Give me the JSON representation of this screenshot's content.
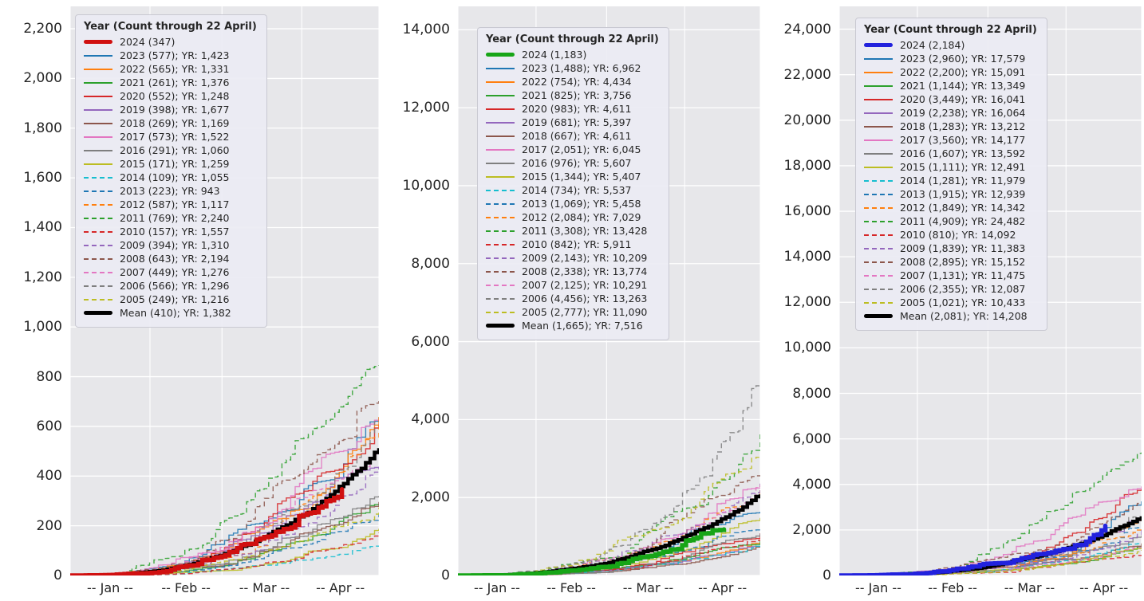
{
  "page": {
    "background": "#ffffff"
  },
  "chart_data": [
    {
      "type": "line",
      "legend_title": "Year (Count through 22 April)",
      "legend_position": "upper left",
      "grid": true,
      "x_tick_labels": [
        "-- Jan --",
        "-- Feb --",
        "-- Mar --",
        "-- Apr --"
      ],
      "x_range_days": 120,
      "ylim": [
        0,
        2290
      ],
      "y_tick_values": [
        0,
        200,
        400,
        600,
        800,
        1000,
        1200,
        1400,
        1600,
        1800,
        2000,
        2200
      ],
      "y_tick_labels": [
        "0",
        "200",
        "400",
        "600",
        "800",
        "1,000",
        "1,200",
        "1,400",
        "1,600",
        "1,800",
        "2,000",
        "2,200"
      ],
      "series": [
        {
          "label": "2024 (347)",
          "year": "2024",
          "count": 347,
          "yr_total": null,
          "color": "#d01010",
          "dash": false,
          "emphasis": true
        },
        {
          "label": "2023 (577); YR: 1,423",
          "year": "2023",
          "count": 577,
          "yr_total": 1423,
          "color": "#1f77b4",
          "dash": false,
          "emphasis": false
        },
        {
          "label": "2022 (565); YR: 1,331",
          "year": "2022",
          "count": 565,
          "yr_total": 1331,
          "color": "#ff7f0e",
          "dash": false,
          "emphasis": false
        },
        {
          "label": "2021 (261); YR: 1,376",
          "year": "2021",
          "count": 261,
          "yr_total": 1376,
          "color": "#2ca02c",
          "dash": false,
          "emphasis": false
        },
        {
          "label": "2020 (552); YR: 1,248",
          "year": "2020",
          "count": 552,
          "yr_total": 1248,
          "color": "#d62728",
          "dash": false,
          "emphasis": false
        },
        {
          "label": "2019 (398); YR: 1,677",
          "year": "2019",
          "count": 398,
          "yr_total": 1677,
          "color": "#9467bd",
          "dash": false,
          "emphasis": false
        },
        {
          "label": "2018 (269); YR: 1,169",
          "year": "2018",
          "count": 269,
          "yr_total": 1169,
          "color": "#8c564b",
          "dash": false,
          "emphasis": false
        },
        {
          "label": "2017 (573); YR: 1,522",
          "year": "2017",
          "count": 573,
          "yr_total": 1522,
          "color": "#e377c2",
          "dash": false,
          "emphasis": false
        },
        {
          "label": "2016 (291); YR: 1,060",
          "year": "2016",
          "count": 291,
          "yr_total": 1060,
          "color": "#7f7f7f",
          "dash": false,
          "emphasis": false
        },
        {
          "label": "2015 (171); YR: 1,259",
          "year": "2015",
          "count": 171,
          "yr_total": 1259,
          "color": "#bcbd22",
          "dash": false,
          "emphasis": false
        },
        {
          "label": "2014 (109); YR: 1,055",
          "year": "2014",
          "count": 109,
          "yr_total": 1055,
          "color": "#17becf",
          "dash": true,
          "emphasis": false
        },
        {
          "label": "2013 (223); YR: 943",
          "year": "2013",
          "count": 223,
          "yr_total": 943,
          "color": "#1f77b4",
          "dash": true,
          "emphasis": false
        },
        {
          "label": "2012 (587); YR: 1,117",
          "year": "2012",
          "count": 587,
          "yr_total": 1117,
          "color": "#ff7f0e",
          "dash": true,
          "emphasis": false
        },
        {
          "label": "2011 (769); YR: 2,240",
          "year": "2011",
          "count": 769,
          "yr_total": 2240,
          "color": "#2ca02c",
          "dash": true,
          "emphasis": false
        },
        {
          "label": "2010 (157); YR: 1,557",
          "year": "2010",
          "count": 157,
          "yr_total": 1557,
          "color": "#d62728",
          "dash": true,
          "emphasis": false
        },
        {
          "label": "2009 (394); YR: 1,310",
          "year": "2009",
          "count": 394,
          "yr_total": 1310,
          "color": "#9467bd",
          "dash": true,
          "emphasis": false
        },
        {
          "label": "2008 (643); YR: 2,194",
          "year": "2008",
          "count": 643,
          "yr_total": 2194,
          "color": "#8c564b",
          "dash": true,
          "emphasis": false
        },
        {
          "label": "2007 (449); YR: 1,276",
          "year": "2007",
          "count": 449,
          "yr_total": 1276,
          "color": "#e377c2",
          "dash": true,
          "emphasis": false
        },
        {
          "label": "2006 (566); YR: 1,296",
          "year": "2006",
          "count": 566,
          "yr_total": 1296,
          "color": "#7f7f7f",
          "dash": true,
          "emphasis": false
        },
        {
          "label": "2005 (249); YR: 1,216",
          "year": "2005",
          "count": 249,
          "yr_total": 1216,
          "color": "#bcbd22",
          "dash": true,
          "emphasis": false
        },
        {
          "label": "Mean (410); YR: 1,382",
          "year": "Mean",
          "count": 410,
          "yr_total": 1382,
          "color": "#000000",
          "dash": false,
          "emphasis": true
        }
      ]
    },
    {
      "type": "line",
      "legend_title": "Year (Count through 22 April)",
      "legend_position": "upper left",
      "grid": true,
      "x_tick_labels": [
        "-- Jan --",
        "-- Feb --",
        "-- Mar --",
        "-- Apr --"
      ],
      "x_range_days": 120,
      "ylim": [
        0,
        14600
      ],
      "y_tick_values": [
        0,
        2000,
        4000,
        6000,
        8000,
        10000,
        12000,
        14000
      ],
      "y_tick_labels": [
        "0",
        "2,000",
        "4,000",
        "6,000",
        "8,000",
        "10,000",
        "12,000",
        "14,000"
      ],
      "series": [
        {
          "label": "2024 (1,183)",
          "year": "2024",
          "count": 1183,
          "yr_total": null,
          "color": "#17a517",
          "dash": false,
          "emphasis": true
        },
        {
          "label": "2023 (1,488); YR: 6,962",
          "year": "2023",
          "count": 1488,
          "yr_total": 6962,
          "color": "#1f77b4",
          "dash": false,
          "emphasis": false
        },
        {
          "label": "2022 (754); YR: 4,434",
          "year": "2022",
          "count": 754,
          "yr_total": 4434,
          "color": "#ff7f0e",
          "dash": false,
          "emphasis": false
        },
        {
          "label": "2021 (825); YR: 3,756",
          "year": "2021",
          "count": 825,
          "yr_total": 3756,
          "color": "#2ca02c",
          "dash": false,
          "emphasis": false
        },
        {
          "label": "2020 (983); YR: 4,611",
          "year": "2020",
          "count": 983,
          "yr_total": 4611,
          "color": "#d62728",
          "dash": false,
          "emphasis": false
        },
        {
          "label": "2019 (681); YR: 5,397",
          "year": "2019",
          "count": 681,
          "yr_total": 5397,
          "color": "#9467bd",
          "dash": false,
          "emphasis": false
        },
        {
          "label": "2018 (667); YR: 4,611",
          "year": "2018",
          "count": 667,
          "yr_total": 4611,
          "color": "#8c564b",
          "dash": false,
          "emphasis": false
        },
        {
          "label": "2017 (2,051); YR: 6,045",
          "year": "2017",
          "count": 2051,
          "yr_total": 6045,
          "color": "#e377c2",
          "dash": false,
          "emphasis": false
        },
        {
          "label": "2016 (976); YR: 5,607",
          "year": "2016",
          "count": 976,
          "yr_total": 5607,
          "color": "#7f7f7f",
          "dash": false,
          "emphasis": false
        },
        {
          "label": "2015 (1,344); YR: 5,407",
          "year": "2015",
          "count": 1344,
          "yr_total": 5407,
          "color": "#bcbd22",
          "dash": false,
          "emphasis": false
        },
        {
          "label": "2014 (734); YR: 5,537",
          "year": "2014",
          "count": 734,
          "yr_total": 5537,
          "color": "#17becf",
          "dash": true,
          "emphasis": false
        },
        {
          "label": "2013 (1,069); YR: 5,458",
          "year": "2013",
          "count": 1069,
          "yr_total": 5458,
          "color": "#1f77b4",
          "dash": true,
          "emphasis": false
        },
        {
          "label": "2012 (2,084); YR: 7,029",
          "year": "2012",
          "count": 2084,
          "yr_total": 7029,
          "color": "#ff7f0e",
          "dash": true,
          "emphasis": false
        },
        {
          "label": "2011 (3,308); YR: 13,428",
          "year": "2011",
          "count": 3308,
          "yr_total": 13428,
          "color": "#2ca02c",
          "dash": true,
          "emphasis": false
        },
        {
          "label": "2010 (842); YR: 5,911",
          "year": "2010",
          "count": 842,
          "yr_total": 5911,
          "color": "#d62728",
          "dash": true,
          "emphasis": false
        },
        {
          "label": "2009 (2,143); YR: 10,209",
          "year": "2009",
          "count": 2143,
          "yr_total": 10209,
          "color": "#9467bd",
          "dash": true,
          "emphasis": false
        },
        {
          "label": "2008 (2,338); YR: 13,774",
          "year": "2008",
          "count": 2338,
          "yr_total": 13774,
          "color": "#8c564b",
          "dash": true,
          "emphasis": false
        },
        {
          "label": "2007 (2,125); YR: 10,291",
          "year": "2007",
          "count": 2125,
          "yr_total": 10291,
          "color": "#e377c2",
          "dash": true,
          "emphasis": false
        },
        {
          "label": "2006 (4,456); YR: 13,263",
          "year": "2006",
          "count": 4456,
          "yr_total": 13263,
          "color": "#7f7f7f",
          "dash": true,
          "emphasis": false
        },
        {
          "label": "2005 (2,777); YR: 11,090",
          "year": "2005",
          "count": 2777,
          "yr_total": 11090,
          "color": "#bcbd22",
          "dash": true,
          "emphasis": false
        },
        {
          "label": "Mean (1,665); YR: 7,516",
          "year": "Mean",
          "count": 1665,
          "yr_total": 7516,
          "color": "#000000",
          "dash": false,
          "emphasis": true
        }
      ]
    },
    {
      "type": "line",
      "legend_title": "Year (Count through 22 April)",
      "legend_position": "upper left",
      "grid": true,
      "x_tick_labels": [
        "-- Jan --",
        "-- Feb --",
        "-- Mar --",
        "-- Apr --"
      ],
      "x_range_days": 120,
      "ylim": [
        0,
        25000
      ],
      "y_tick_values": [
        0,
        2000,
        4000,
        6000,
        8000,
        10000,
        12000,
        14000,
        16000,
        18000,
        20000,
        22000,
        24000
      ],
      "y_tick_labels": [
        "0",
        "2,000",
        "4,000",
        "6,000",
        "8,000",
        "10,000",
        "12,000",
        "14,000",
        "16,000",
        "18,000",
        "20,000",
        "22,000",
        "24,000"
      ],
      "series": [
        {
          "label": "2024 (2,184)",
          "year": "2024",
          "count": 2184,
          "yr_total": null,
          "color": "#2222dd",
          "dash": false,
          "emphasis": true
        },
        {
          "label": "2023 (2,960); YR: 17,579",
          "year": "2023",
          "count": 2960,
          "yr_total": 17579,
          "color": "#1f77b4",
          "dash": false,
          "emphasis": false
        },
        {
          "label": "2022 (2,200); YR: 15,091",
          "year": "2022",
          "count": 2200,
          "yr_total": 15091,
          "color": "#ff7f0e",
          "dash": false,
          "emphasis": false
        },
        {
          "label": "2021 (1,144); YR: 13,349",
          "year": "2021",
          "count": 1144,
          "yr_total": 13349,
          "color": "#2ca02c",
          "dash": false,
          "emphasis": false
        },
        {
          "label": "2020 (3,449); YR: 16,041",
          "year": "2020",
          "count": 3449,
          "yr_total": 16041,
          "color": "#d62728",
          "dash": false,
          "emphasis": false
        },
        {
          "label": "2019 (2,238); YR: 16,064",
          "year": "2019",
          "count": 2238,
          "yr_total": 16064,
          "color": "#9467bd",
          "dash": false,
          "emphasis": false
        },
        {
          "label": "2018 (1,283); YR: 13,212",
          "year": "2018",
          "count": 1283,
          "yr_total": 13212,
          "color": "#8c564b",
          "dash": false,
          "emphasis": false
        },
        {
          "label": "2017 (3,560); YR: 14,177",
          "year": "2017",
          "count": 3560,
          "yr_total": 14177,
          "color": "#e377c2",
          "dash": false,
          "emphasis": false
        },
        {
          "label": "2016 (1,607); YR: 13,592",
          "year": "2016",
          "count": 1607,
          "yr_total": 13592,
          "color": "#7f7f7f",
          "dash": false,
          "emphasis": false
        },
        {
          "label": "2015 (1,111); YR: 12,491",
          "year": "2015",
          "count": 1111,
          "yr_total": 12491,
          "color": "#bcbd22",
          "dash": false,
          "emphasis": false
        },
        {
          "label": "2014 (1,281); YR: 11,979",
          "year": "2014",
          "count": 1281,
          "yr_total": 11979,
          "color": "#17becf",
          "dash": true,
          "emphasis": false
        },
        {
          "label": "2013 (1,915); YR: 12,939",
          "year": "2013",
          "count": 1915,
          "yr_total": 12939,
          "color": "#1f77b4",
          "dash": true,
          "emphasis": false
        },
        {
          "label": "2012 (1,849); YR: 14,342",
          "year": "2012",
          "count": 1849,
          "yr_total": 14342,
          "color": "#ff7f0e",
          "dash": true,
          "emphasis": false
        },
        {
          "label": "2011 (4,909); YR: 24,482",
          "year": "2011",
          "count": 4909,
          "yr_total": 24482,
          "color": "#2ca02c",
          "dash": true,
          "emphasis": false
        },
        {
          "label": "2010 (810); YR: 14,092",
          "year": "2010",
          "count": 810,
          "yr_total": 14092,
          "color": "#d62728",
          "dash": true,
          "emphasis": false
        },
        {
          "label": "2009 (1,839); YR: 11,383",
          "year": "2009",
          "count": 1839,
          "yr_total": 11383,
          "color": "#9467bd",
          "dash": true,
          "emphasis": false
        },
        {
          "label": "2008 (2,895); YR: 15,152",
          "year": "2008",
          "count": 2895,
          "yr_total": 15152,
          "color": "#8c564b",
          "dash": true,
          "emphasis": false
        },
        {
          "label": "2007 (1,131); YR: 11,475",
          "year": "2007",
          "count": 1131,
          "yr_total": 11475,
          "color": "#e377c2",
          "dash": true,
          "emphasis": false
        },
        {
          "label": "2006 (2,355); YR: 12,087",
          "year": "2006",
          "count": 2355,
          "yr_total": 12087,
          "color": "#7f7f7f",
          "dash": true,
          "emphasis": false
        },
        {
          "label": "2005 (1,021); YR: 10,433",
          "year": "2005",
          "count": 1021,
          "yr_total": 10433,
          "color": "#bcbd22",
          "dash": true,
          "emphasis": false
        },
        {
          "label": "Mean (2,081); YR: 14,208",
          "year": "Mean",
          "count": 2081,
          "yr_total": 14208,
          "color": "#000000",
          "dash": false,
          "emphasis": true
        }
      ]
    }
  ],
  "style": {
    "plot_background": "#e7e7ea",
    "gridline_color": "#ffffff",
    "tick_label_color": "#262626"
  }
}
